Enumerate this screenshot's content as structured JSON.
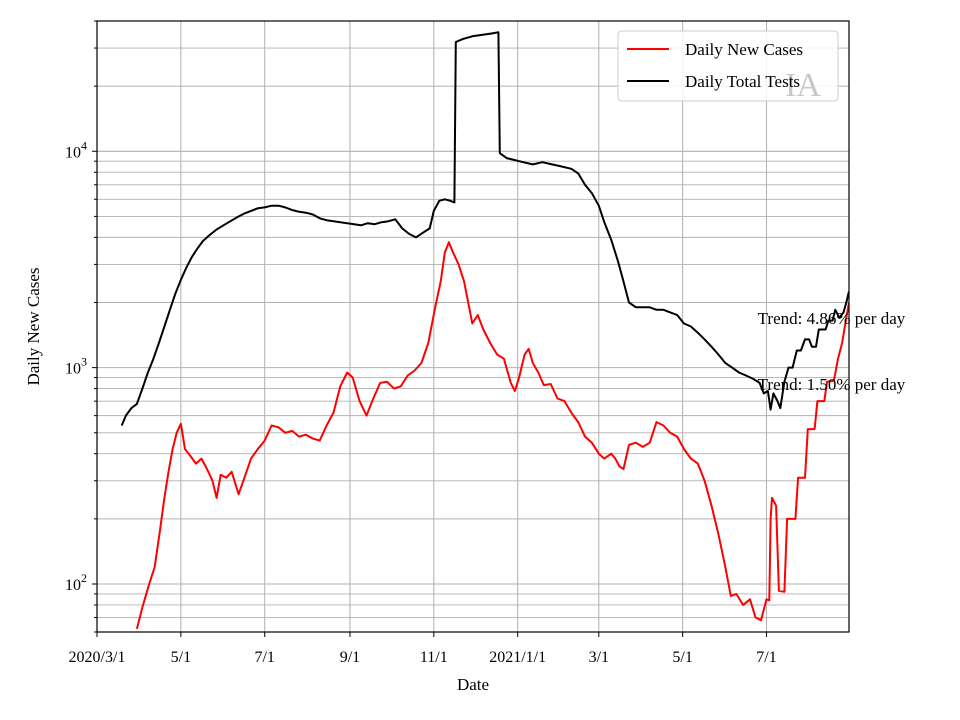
{
  "chart_data": {
    "type": "line",
    "title": "",
    "xlabel": "Date",
    "ylabel": "Daily New Cases",
    "yscale": "log",
    "grid": true,
    "legend_location": "top-right",
    "x_range": [
      "2020-03-01",
      "2021-08-30"
    ],
    "ylim": [
      60,
      40000
    ],
    "x_ticks": [
      {
        "date": "2020-03-01",
        "label": "2020/3/1"
      },
      {
        "date": "2020-05-01",
        "label": "5/1"
      },
      {
        "date": "2020-07-01",
        "label": "7/1"
      },
      {
        "date": "2020-09-01",
        "label": "9/1"
      },
      {
        "date": "2020-11-01",
        "label": "11/1"
      },
      {
        "date": "2021-01-01",
        "label": "2021/1/1"
      },
      {
        "date": "2021-03-01",
        "label": "3/1"
      },
      {
        "date": "2021-05-01",
        "label": "5/1"
      },
      {
        "date": "2021-07-01",
        "label": "7/1"
      }
    ],
    "y_ticks": [
      {
        "value": 100,
        "base": "10",
        "exp": "2"
      },
      {
        "value": 1000,
        "base": "10",
        "exp": "3"
      },
      {
        "value": 10000,
        "base": "10",
        "exp": "4"
      }
    ],
    "watermark": "IA",
    "series": [
      {
        "name": "Daily New Cases",
        "color": "#ff0000",
        "points": [
          [
            "2020-03-30",
            62
          ],
          [
            "2020-04-03",
            78
          ],
          [
            "2020-04-08",
            100
          ],
          [
            "2020-04-12",
            120
          ],
          [
            "2020-04-16",
            180
          ],
          [
            "2020-04-19",
            250
          ],
          [
            "2020-04-22",
            330
          ],
          [
            "2020-04-25",
            420
          ],
          [
            "2020-04-28",
            500
          ],
          [
            "2020-05-01",
            550
          ],
          [
            "2020-05-04",
            420
          ],
          [
            "2020-05-08",
            390
          ],
          [
            "2020-05-12",
            360
          ],
          [
            "2020-05-16",
            380
          ],
          [
            "2020-05-20",
            340
          ],
          [
            "2020-05-24",
            300
          ],
          [
            "2020-05-27",
            250
          ],
          [
            "2020-05-30",
            320
          ],
          [
            "2020-06-03",
            310
          ],
          [
            "2020-06-07",
            330
          ],
          [
            "2020-06-12",
            260
          ],
          [
            "2020-06-17",
            320
          ],
          [
            "2020-06-21",
            380
          ],
          [
            "2020-06-26",
            420
          ],
          [
            "2020-07-01",
            460
          ],
          [
            "2020-07-06",
            540
          ],
          [
            "2020-07-11",
            530
          ],
          [
            "2020-07-16",
            500
          ],
          [
            "2020-07-21",
            510
          ],
          [
            "2020-07-26",
            480
          ],
          [
            "2020-07-31",
            490
          ],
          [
            "2020-08-05",
            470
          ],
          [
            "2020-08-10",
            460
          ],
          [
            "2020-08-15",
            540
          ],
          [
            "2020-08-20",
            620
          ],
          [
            "2020-08-25",
            820
          ],
          [
            "2020-08-30",
            950
          ],
          [
            "2020-09-03",
            900
          ],
          [
            "2020-09-08",
            700
          ],
          [
            "2020-09-13",
            600
          ],
          [
            "2020-09-18",
            720
          ],
          [
            "2020-09-23",
            850
          ],
          [
            "2020-09-28",
            860
          ],
          [
            "2020-10-03",
            800
          ],
          [
            "2020-10-08",
            820
          ],
          [
            "2020-10-13",
            920
          ],
          [
            "2020-10-18",
            970
          ],
          [
            "2020-10-23",
            1050
          ],
          [
            "2020-10-28",
            1300
          ],
          [
            "2020-11-02",
            1900
          ],
          [
            "2020-11-06",
            2500
          ],
          [
            "2020-11-09",
            3400
          ],
          [
            "2020-11-12",
            3800
          ],
          [
            "2020-11-15",
            3400
          ],
          [
            "2020-11-19",
            3000
          ],
          [
            "2020-11-23",
            2500
          ],
          [
            "2020-11-26",
            2000
          ],
          [
            "2020-11-29",
            1600
          ],
          [
            "2020-12-03",
            1750
          ],
          [
            "2020-12-07",
            1500
          ],
          [
            "2020-12-12",
            1300
          ],
          [
            "2020-12-17",
            1150
          ],
          [
            "2020-12-22",
            1100
          ],
          [
            "2020-12-27",
            850
          ],
          [
            "2020-12-30",
            780
          ],
          [
            "2021-01-02",
            900
          ],
          [
            "2021-01-06",
            1150
          ],
          [
            "2021-01-09",
            1220
          ],
          [
            "2021-01-12",
            1050
          ],
          [
            "2021-01-16",
            950
          ],
          [
            "2021-01-20",
            830
          ],
          [
            "2021-01-25",
            840
          ],
          [
            "2021-01-30",
            720
          ],
          [
            "2021-02-04",
            700
          ],
          [
            "2021-02-09",
            620
          ],
          [
            "2021-02-14",
            560
          ],
          [
            "2021-02-19",
            480
          ],
          [
            "2021-02-24",
            450
          ],
          [
            "2021-03-01",
            400
          ],
          [
            "2021-03-05",
            380
          ],
          [
            "2021-03-10",
            400
          ],
          [
            "2021-03-13",
            380
          ],
          [
            "2021-03-16",
            350
          ],
          [
            "2021-03-19",
            340
          ],
          [
            "2021-03-23",
            440
          ],
          [
            "2021-03-28",
            450
          ],
          [
            "2021-04-02",
            430
          ],
          [
            "2021-04-07",
            450
          ],
          [
            "2021-04-12",
            560
          ],
          [
            "2021-04-17",
            540
          ],
          [
            "2021-04-22",
            500
          ],
          [
            "2021-04-27",
            480
          ],
          [
            "2021-05-02",
            420
          ],
          [
            "2021-05-07",
            380
          ],
          [
            "2021-05-12",
            360
          ],
          [
            "2021-05-17",
            300
          ],
          [
            "2021-05-22",
            230
          ],
          [
            "2021-05-27",
            170
          ],
          [
            "2021-06-01",
            120
          ],
          [
            "2021-06-05",
            88
          ],
          [
            "2021-06-09",
            90
          ],
          [
            "2021-06-14",
            80
          ],
          [
            "2021-06-19",
            85
          ],
          [
            "2021-06-23",
            70
          ],
          [
            "2021-06-27",
            68
          ],
          [
            "2021-07-01",
            85
          ],
          [
            "2021-07-03",
            84
          ],
          [
            "2021-07-04",
            200
          ],
          [
            "2021-07-05",
            250
          ],
          [
            "2021-07-08",
            230
          ],
          [
            "2021-07-10",
            93
          ],
          [
            "2021-07-14",
            92
          ],
          [
            "2021-07-16",
            200
          ],
          [
            "2021-07-22",
            200
          ],
          [
            "2021-07-24",
            310
          ],
          [
            "2021-07-29",
            310
          ],
          [
            "2021-07-31",
            520
          ],
          [
            "2021-08-05",
            520
          ],
          [
            "2021-08-07",
            700
          ],
          [
            "2021-08-12",
            700
          ],
          [
            "2021-08-14",
            860
          ],
          [
            "2021-08-19",
            870
          ],
          [
            "2021-08-22",
            1100
          ],
          [
            "2021-08-25",
            1300
          ],
          [
            "2021-08-28",
            1700
          ],
          [
            "2021-08-30",
            2000
          ]
        ]
      },
      {
        "name": "Daily Total Tests",
        "color": "#000000",
        "points": [
          [
            "2020-03-19",
            540
          ],
          [
            "2020-03-22",
            600
          ],
          [
            "2020-03-26",
            650
          ],
          [
            "2020-03-30",
            680
          ],
          [
            "2020-04-03",
            800
          ],
          [
            "2020-04-07",
            950
          ],
          [
            "2020-04-11",
            1100
          ],
          [
            "2020-04-15",
            1300
          ],
          [
            "2020-04-19",
            1550
          ],
          [
            "2020-04-23",
            1850
          ],
          [
            "2020-04-27",
            2200
          ],
          [
            "2020-05-01",
            2550
          ],
          [
            "2020-05-05",
            2900
          ],
          [
            "2020-05-09",
            3250
          ],
          [
            "2020-05-13",
            3550
          ],
          [
            "2020-05-17",
            3850
          ],
          [
            "2020-05-22",
            4100
          ],
          [
            "2020-05-27",
            4350
          ],
          [
            "2020-06-01",
            4550
          ],
          [
            "2020-06-06",
            4750
          ],
          [
            "2020-06-11",
            4950
          ],
          [
            "2020-06-16",
            5150
          ],
          [
            "2020-06-21",
            5300
          ],
          [
            "2020-06-26",
            5450
          ],
          [
            "2020-07-01",
            5500
          ],
          [
            "2020-07-06",
            5600
          ],
          [
            "2020-07-11",
            5600
          ],
          [
            "2020-07-16",
            5500
          ],
          [
            "2020-07-21",
            5350
          ],
          [
            "2020-07-26",
            5250
          ],
          [
            "2020-07-31",
            5200
          ],
          [
            "2020-08-05",
            5100
          ],
          [
            "2020-08-10",
            4900
          ],
          [
            "2020-08-15",
            4800
          ],
          [
            "2020-08-20",
            4750
          ],
          [
            "2020-08-25",
            4700
          ],
          [
            "2020-08-30",
            4650
          ],
          [
            "2020-09-04",
            4600
          ],
          [
            "2020-09-09",
            4550
          ],
          [
            "2020-09-14",
            4650
          ],
          [
            "2020-09-19",
            4600
          ],
          [
            "2020-09-24",
            4700
          ],
          [
            "2020-09-29",
            4750
          ],
          [
            "2020-10-04",
            4850
          ],
          [
            "2020-10-09",
            4400
          ],
          [
            "2020-10-14",
            4150
          ],
          [
            "2020-10-19",
            4000
          ],
          [
            "2020-10-24",
            4200
          ],
          [
            "2020-10-29",
            4400
          ],
          [
            "2020-11-01",
            5300
          ],
          [
            "2020-11-05",
            5900
          ],
          [
            "2020-11-09",
            6000
          ],
          [
            "2020-11-13",
            5900
          ],
          [
            "2020-11-16",
            5800
          ],
          [
            "2020-11-17",
            32000
          ],
          [
            "2020-11-22",
            33000
          ],
          [
            "2020-11-29",
            34000
          ],
          [
            "2020-12-06",
            34500
          ],
          [
            "2020-12-13",
            35000
          ],
          [
            "2020-12-18",
            35500
          ],
          [
            "2020-12-19",
            9800
          ],
          [
            "2020-12-24",
            9300
          ],
          [
            "2020-12-30",
            9100
          ],
          [
            "2021-01-05",
            8900
          ],
          [
            "2021-01-12",
            8700
          ],
          [
            "2021-01-19",
            8900
          ],
          [
            "2021-01-26",
            8700
          ],
          [
            "2021-02-02",
            8500
          ],
          [
            "2021-02-09",
            8300
          ],
          [
            "2021-02-14",
            7900
          ],
          [
            "2021-02-19",
            7000
          ],
          [
            "2021-02-24",
            6400
          ],
          [
            "2021-03-01",
            5600
          ],
          [
            "2021-03-05",
            4700
          ],
          [
            "2021-03-10",
            3900
          ],
          [
            "2021-03-15",
            3100
          ],
          [
            "2021-03-19",
            2500
          ],
          [
            "2021-03-23",
            2000
          ],
          [
            "2021-03-28",
            1900
          ],
          [
            "2021-04-02",
            1900
          ],
          [
            "2021-04-07",
            1900
          ],
          [
            "2021-04-12",
            1850
          ],
          [
            "2021-04-17",
            1850
          ],
          [
            "2021-04-22",
            1800
          ],
          [
            "2021-04-27",
            1750
          ],
          [
            "2021-05-02",
            1600
          ],
          [
            "2021-05-07",
            1550
          ],
          [
            "2021-05-12",
            1450
          ],
          [
            "2021-05-17",
            1350
          ],
          [
            "2021-05-22",
            1250
          ],
          [
            "2021-05-27",
            1150
          ],
          [
            "2021-06-01",
            1050
          ],
          [
            "2021-06-06",
            1000
          ],
          [
            "2021-06-11",
            950
          ],
          [
            "2021-06-16",
            920
          ],
          [
            "2021-06-21",
            890
          ],
          [
            "2021-06-26",
            850
          ],
          [
            "2021-06-29",
            760
          ],
          [
            "2021-07-02",
            780
          ],
          [
            "2021-07-04",
            640
          ],
          [
            "2021-07-06",
            760
          ],
          [
            "2021-07-09",
            700
          ],
          [
            "2021-07-11",
            650
          ],
          [
            "2021-07-14",
            860
          ],
          [
            "2021-07-17",
            1000
          ],
          [
            "2021-07-20",
            1000
          ],
          [
            "2021-07-23",
            1200
          ],
          [
            "2021-07-26",
            1200
          ],
          [
            "2021-07-29",
            1350
          ],
          [
            "2021-08-01",
            1350
          ],
          [
            "2021-08-03",
            1250
          ],
          [
            "2021-08-06",
            1250
          ],
          [
            "2021-08-08",
            1500
          ],
          [
            "2021-08-13",
            1500
          ],
          [
            "2021-08-15",
            1650
          ],
          [
            "2021-08-18",
            1650
          ],
          [
            "2021-08-20",
            1850
          ],
          [
            "2021-08-23",
            1700
          ],
          [
            "2021-08-26",
            1800
          ],
          [
            "2021-08-28",
            2000
          ],
          [
            "2021-08-30",
            2250
          ]
        ]
      }
    ],
    "annotations": [
      {
        "text": "Trend: 4.86% per day",
        "date": "2021-06-26",
        "value": 1700
      },
      {
        "text": "Trend: 1.50% per day",
        "date": "2021-06-26",
        "value": 840
      }
    ]
  }
}
